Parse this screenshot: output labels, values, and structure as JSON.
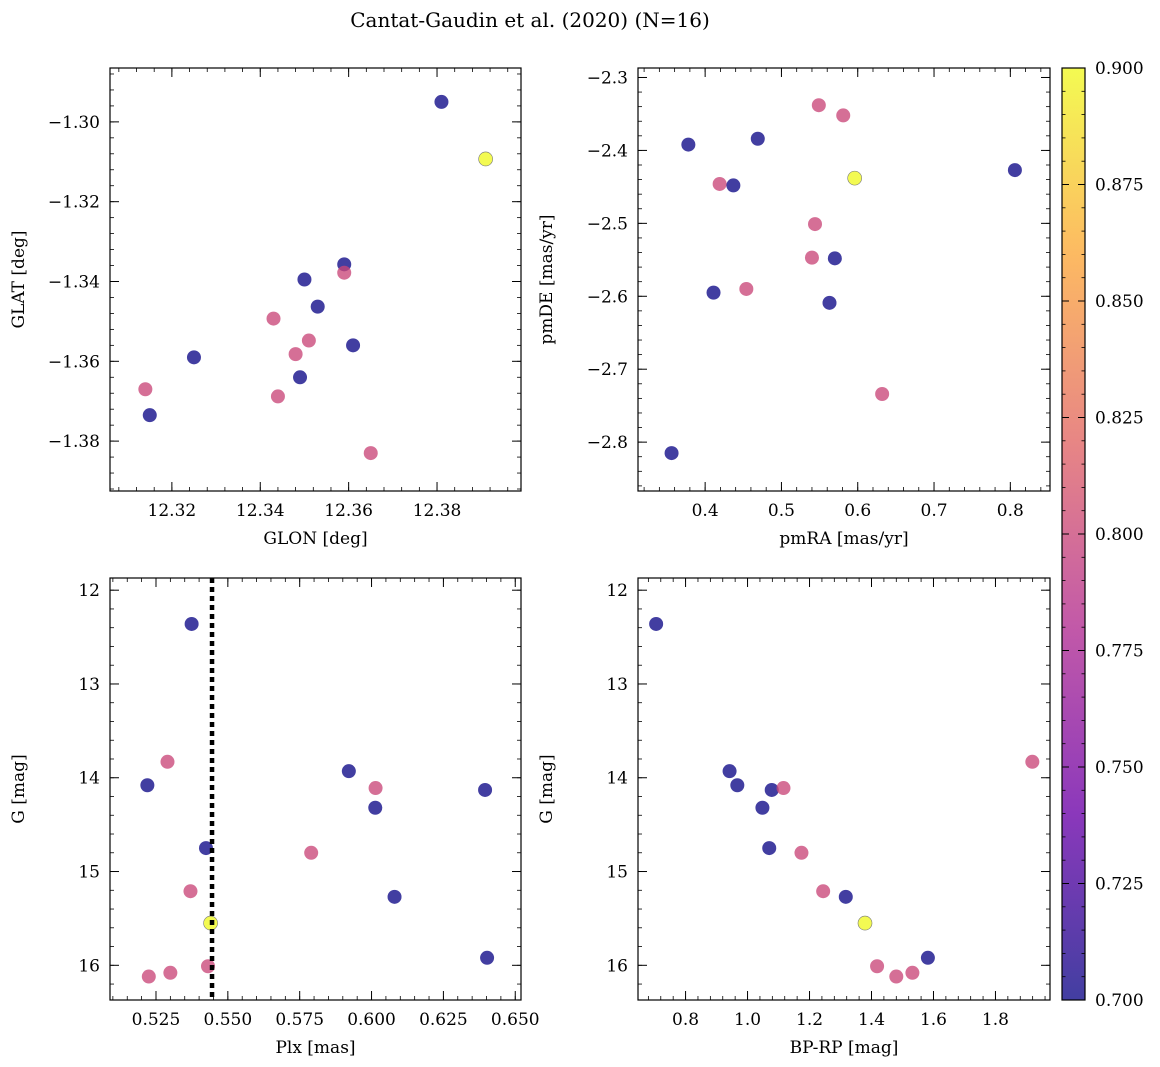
{
  "figure": {
    "title": "Cantat-Gaudin et al. (2020) (N=16)"
  },
  "colorbar": {
    "min": 0.7,
    "max": 0.9,
    "ticks": [
      "0.700",
      "0.725",
      "0.750",
      "0.775",
      "0.800",
      "0.825",
      "0.850",
      "0.875",
      "0.900"
    ],
    "colormap": [
      "#0d0887",
      "#6a00a8",
      "#b12a90",
      "#e16462",
      "#fca636",
      "#f0f921"
    ]
  },
  "chart_data": [
    {
      "type": "scatter",
      "title": "",
      "xlabel": "GLON [deg]",
      "ylabel": "GLAT [deg]",
      "xlim": [
        12.306,
        12.399
      ],
      "ylim": [
        -1.3925,
        -1.2865
      ],
      "y_inverted": false,
      "xticks": [
        12.32,
        12.34,
        12.36,
        12.38
      ],
      "xtick_labels": [
        "12.32",
        "12.34",
        "12.36",
        "12.38"
      ],
      "yticks": [
        -1.3,
        -1.32,
        -1.34,
        -1.36,
        -1.38
      ],
      "ytick_labels": [
        "−1.30",
        "−1.32",
        "−1.34",
        "−1.36",
        "−1.38"
      ],
      "x": [
        12.381,
        12.391,
        12.359,
        12.359,
        12.35,
        12.353,
        12.343,
        12.351,
        12.361,
        12.325,
        12.348,
        12.349,
        12.314,
        12.344,
        12.315,
        12.365
      ],
      "y": [
        -1.295,
        -1.3093,
        -1.3357,
        -1.3378,
        -1.3395,
        -1.3463,
        -1.3493,
        -1.3548,
        -1.356,
        -1.359,
        -1.3582,
        -1.364,
        -1.367,
        -1.3688,
        -1.3735,
        -1.383
      ],
      "c": [
        0.7,
        0.9,
        0.7,
        0.8,
        0.7,
        0.7,
        0.8,
        0.8,
        0.7,
        0.7,
        0.8,
        0.7,
        0.8,
        0.8,
        0.7,
        0.8
      ]
    },
    {
      "type": "scatter",
      "title": "",
      "xlabel": "pmRA [mas/yr]",
      "ylabel": "pmDE [mas/yr]",
      "xlim": [
        0.312,
        0.852
      ],
      "ylim": [
        -2.867,
        -2.287
      ],
      "y_inverted": false,
      "xticks": [
        0.4,
        0.5,
        0.6,
        0.7,
        0.8
      ],
      "xtick_labels": [
        "0.4",
        "0.5",
        "0.6",
        "0.7",
        "0.8"
      ],
      "yticks": [
        -2.3,
        -2.4,
        -2.5,
        -2.6,
        -2.7,
        -2.8
      ],
      "ytick_labels": [
        "−2.3",
        "−2.4",
        "−2.5",
        "−2.6",
        "−2.7",
        "−2.8"
      ],
      "x": [
        0.549,
        0.581,
        0.378,
        0.469,
        0.806,
        0.596,
        0.419,
        0.437,
        0.544,
        0.54,
        0.57,
        0.411,
        0.454,
        0.563,
        0.632,
        0.356
      ],
      "y": [
        -2.338,
        -2.352,
        -2.392,
        -2.384,
        -2.427,
        -2.438,
        -2.446,
        -2.448,
        -2.501,
        -2.547,
        -2.548,
        -2.595,
        -2.59,
        -2.609,
        -2.734,
        -2.815
      ],
      "c": [
        0.8,
        0.8,
        0.7,
        0.7,
        0.7,
        0.9,
        0.8,
        0.7,
        0.8,
        0.8,
        0.7,
        0.7,
        0.8,
        0.7,
        0.8,
        0.7
      ]
    },
    {
      "type": "scatter",
      "title": "",
      "xlabel": "Plx [mas]",
      "ylabel": "G [mag]",
      "xlim": [
        0.509,
        0.652
      ],
      "ylim": [
        16.37,
        11.87
      ],
      "y_inverted": true,
      "xticks": [
        0.525,
        0.55,
        0.575,
        0.6,
        0.625,
        0.65
      ],
      "xtick_labels": [
        "0.525",
        "0.550",
        "0.575",
        "0.600",
        "0.625",
        "0.650"
      ],
      "yticks": [
        12,
        13,
        14,
        15,
        16
      ],
      "ytick_labels": [
        "12",
        "13",
        "14",
        "15",
        "16"
      ],
      "vline": 0.5445,
      "x": [
        0.5374,
        0.529,
        0.522,
        0.5921,
        0.6014,
        0.6395,
        0.6013,
        0.5424,
        0.579,
        0.537,
        0.608,
        0.544,
        0.5431,
        0.6402,
        0.53,
        0.5225
      ],
      "y": [
        12.36,
        13.83,
        14.08,
        13.93,
        14.11,
        14.13,
        14.32,
        14.75,
        14.8,
        15.21,
        15.27,
        15.55,
        16.01,
        15.92,
        16.08,
        16.12
      ],
      "c": [
        0.7,
        0.8,
        0.7,
        0.7,
        0.8,
        0.7,
        0.7,
        0.7,
        0.8,
        0.8,
        0.7,
        0.9,
        0.8,
        0.7,
        0.8,
        0.8
      ]
    },
    {
      "type": "scatter",
      "title": "",
      "xlabel": "BP-RP [mag]",
      "ylabel": "G [mag]",
      "xlim": [
        0.6465,
        1.976
      ],
      "ylim": [
        16.37,
        11.87
      ],
      "y_inverted": true,
      "xticks": [
        0.8,
        1.0,
        1.2,
        1.4,
        1.6,
        1.8
      ],
      "xtick_labels": [
        "0.8",
        "1.0",
        "1.2",
        "1.4",
        "1.6",
        "1.8"
      ],
      "yticks": [
        12,
        13,
        14,
        15,
        16
      ],
      "ytick_labels": [
        "12",
        "13",
        "14",
        "15",
        "16"
      ],
      "x": [
        0.705,
        1.919,
        0.942,
        0.967,
        1.078,
        1.116,
        1.048,
        1.07,
        1.174,
        1.244,
        1.317,
        1.379,
        1.418,
        1.48,
        1.532,
        1.582
      ],
      "y": [
        12.36,
        13.83,
        13.93,
        14.08,
        14.13,
        14.11,
        14.32,
        14.75,
        14.8,
        15.21,
        15.27,
        15.55,
        16.01,
        16.12,
        16.08,
        15.92
      ],
      "c": [
        0.7,
        0.8,
        0.7,
        0.7,
        0.7,
        0.8,
        0.7,
        0.7,
        0.8,
        0.8,
        0.7,
        0.9,
        0.8,
        0.8,
        0.8,
        0.7
      ]
    }
  ]
}
